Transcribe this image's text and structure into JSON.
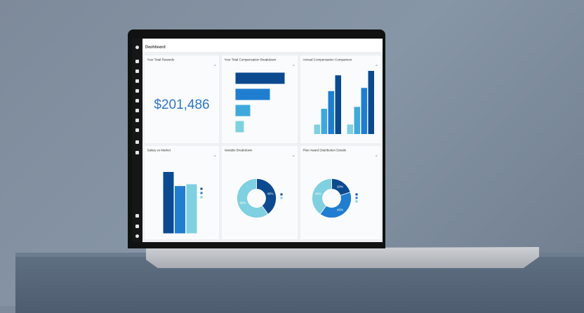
{
  "header": {
    "breadcrumb": "",
    "title": "Dashboard"
  },
  "cards": {
    "total_rewards": {
      "title": "Your Total Rewards",
      "value": "$201,486"
    },
    "breakdown": {
      "title": "Your Total Compensation Breakdown"
    },
    "annual": {
      "title": "Annual Compensation Comparison"
    },
    "salary_market": {
      "title": "Salary vs Market"
    },
    "variable": {
      "title": "Variable Breakdown"
    },
    "plan_award": {
      "title": "Plan Award Distribution Details"
    }
  },
  "menu_icon": "≡",
  "colors": {
    "dark": "#0c4a8f",
    "mid": "#1f7ed0",
    "light": "#3fa9db",
    "pale": "#7fd0e0"
  },
  "chart_data": [
    {
      "type": "bar",
      "orientation": "horizontal",
      "values": [
        100,
        70,
        30,
        17
      ]
    },
    {
      "type": "bar",
      "groups": 2,
      "series": [
        {
          "values": [
            15,
            15
          ]
        },
        {
          "values": [
            40,
            43
          ]
        },
        {
          "values": [
            68,
            73
          ]
        },
        {
          "values": [
            93,
            100
          ]
        }
      ]
    },
    {
      "type": "bar",
      "values": [
        100,
        77,
        80
      ]
    },
    {
      "type": "pie",
      "donut": true,
      "values": [
        40,
        60
      ],
      "labels": [
        "40%",
        "60%"
      ]
    },
    {
      "type": "pie",
      "donut": true,
      "values": [
        20,
        40,
        40
      ],
      "labels": [
        "20%",
        "40%",
        "40%"
      ]
    }
  ]
}
